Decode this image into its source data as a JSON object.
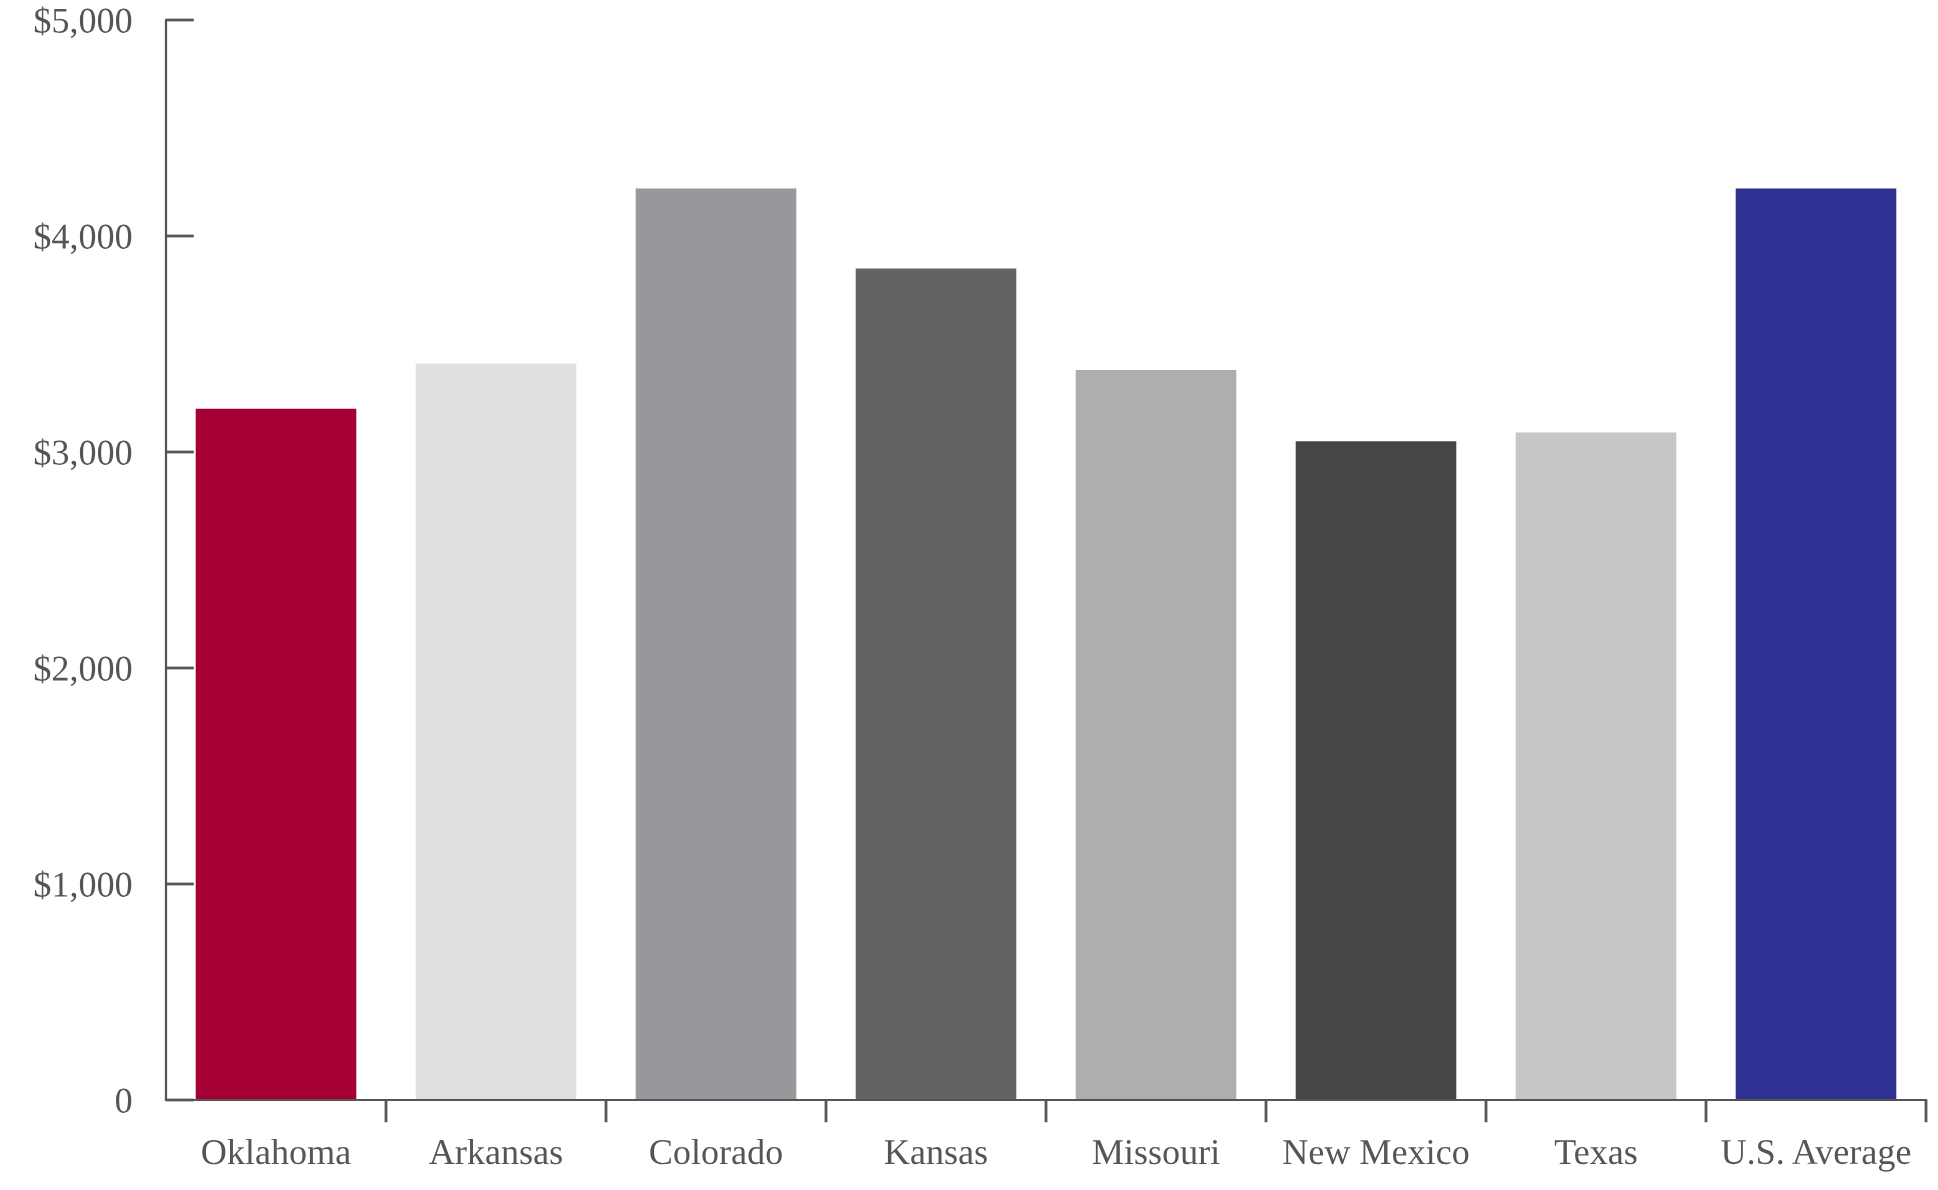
{
  "chart_data": {
    "type": "bar",
    "categories": [
      "Oklahoma",
      "Arkansas",
      "Colorado",
      "Kansas",
      "Missouri",
      "New Mexico",
      "Texas",
      "U.S. Average"
    ],
    "values": [
      3200,
      3410,
      4220,
      3850,
      3380,
      3050,
      3090,
      4220
    ],
    "colors": [
      "#a50034",
      "#e0e0e2",
      "#97989b",
      "#636365",
      "#aeaeb1",
      "#454648",
      "#c6c6c8",
      "#2e3192"
    ],
    "ylim": [
      0,
      5000
    ],
    "yticks": [
      {
        "value": 0,
        "label": "0"
      },
      {
        "value": 1000,
        "label": "$1,000"
      },
      {
        "value": 2000,
        "label": "$2,000"
      },
      {
        "value": 3000,
        "label": "$3,000"
      },
      {
        "value": 4000,
        "label": "$4,000"
      },
      {
        "value": 5000,
        "label": "$5,000"
      }
    ],
    "grid": false,
    "legend": false
  }
}
